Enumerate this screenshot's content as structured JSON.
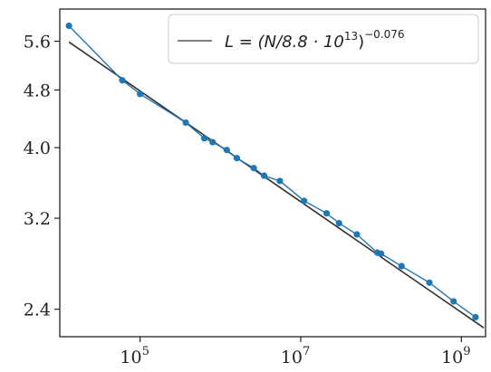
{
  "chart_data": {
    "type": "line",
    "title": "",
    "xlabel": "",
    "ylabel": "",
    "xscale": "log",
    "yscale": "log",
    "xlim": [
      10000,
      2000000000
    ],
    "ylim": [
      2.2,
      6.2
    ],
    "x_ticks": [
      {
        "value": 100000,
        "base": "10",
        "exp": "5"
      },
      {
        "value": 10000000,
        "base": "10",
        "exp": "7"
      },
      {
        "value": 1000000000,
        "base": "10",
        "exp": "9"
      }
    ],
    "y_ticks": [
      {
        "value": 2.4,
        "label": "2.4"
      },
      {
        "value": 3.2,
        "label": "3.2"
      },
      {
        "value": 4.0,
        "label": "4.0"
      },
      {
        "value": 4.8,
        "label": "4.8"
      },
      {
        "value": 5.6,
        "label": "5.6"
      }
    ],
    "legend": {
      "position": "top-right",
      "prefix": "L = (N/8.8 · 10",
      "inner_sup": "13",
      "mid": ")",
      "outer_sup": "−0.076",
      "line_color": "#808080"
    },
    "fit": {
      "color": "#2f2f2f",
      "coefficient": 88000000000000.0,
      "exponent": -0.076,
      "x_range": [
        13000,
        1900000000
      ]
    },
    "series": [
      {
        "color": "#1f77b4",
        "x": [
          13000,
          60000,
          100000,
          370000,
          630000,
          800000,
          1200000,
          1600000,
          2600000,
          3500000,
          5500000,
          11000000,
          21000000,
          30000000,
          50000000,
          90000000,
          100000000,
          180000000,
          400000000,
          800000000,
          1500000000
        ],
        "y": [
          5.88,
          4.95,
          4.74,
          4.33,
          4.12,
          4.07,
          3.97,
          3.87,
          3.75,
          3.66,
          3.6,
          3.38,
          3.25,
          3.15,
          3.04,
          2.87,
          2.86,
          2.75,
          2.61,
          2.46,
          2.34
        ]
      }
    ]
  }
}
